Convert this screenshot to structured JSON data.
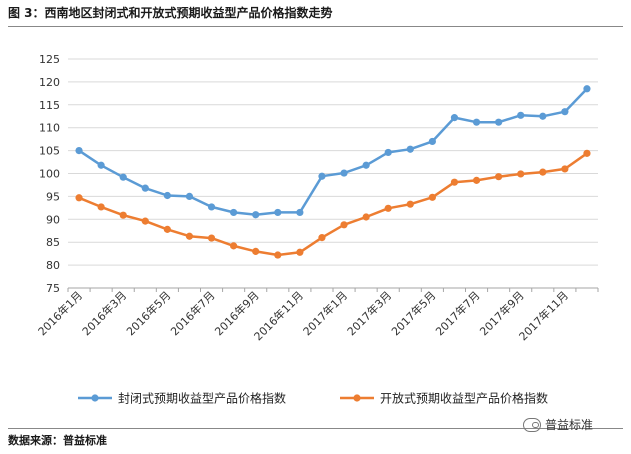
{
  "figure": {
    "title": "图 3：西南地区封闭式和开放式预期收益型产品价格指数走势",
    "source": "数据来源：普益标准",
    "watermark": "普益标准"
  },
  "colors": {
    "closed": "#5b9bd5",
    "open": "#ed7d31",
    "grid": "#d9d9d9",
    "axis": "#a6a6a6"
  },
  "chart_data": {
    "type": "line",
    "title": "",
    "xlabel": "",
    "ylabel": "",
    "ylim": [
      75,
      125
    ],
    "yticks": [
      75,
      80,
      85,
      90,
      95,
      100,
      105,
      110,
      115,
      120,
      125
    ],
    "grid": true,
    "legend_position": "bottom",
    "categories": [
      "2016年1月",
      "2016年2月",
      "2016年3月",
      "2016年4月",
      "2016年5月",
      "2016年6月",
      "2016年7月",
      "2016年8月",
      "2016年9月",
      "2016年10月",
      "2016年11月",
      "2016年12月",
      "2017年1月",
      "2017年2月",
      "2017年3月",
      "2017年4月",
      "2017年5月",
      "2017年6月",
      "2017年7月",
      "2017年8月",
      "2017年9月",
      "2017年10月",
      "2017年11月",
      "2017年12月"
    ],
    "tick_labels": [
      "2016年1月",
      "2016年3月",
      "2016年5月",
      "2016年7月",
      "2016年9月",
      "2016年11月",
      "2017年1月",
      "2017年3月",
      "2017年5月",
      "2017年7月",
      "2017年9月",
      "2017年11月"
    ],
    "series": [
      {
        "name": "封闭式预期收益型产品价格指数",
        "color_key": "closed",
        "values": [
          105.0,
          101.8,
          99.2,
          96.8,
          95.2,
          95.0,
          92.7,
          91.5,
          91.0,
          91.5,
          91.5,
          99.4,
          100.1,
          101.8,
          104.6,
          105.3,
          107.0,
          112.2,
          111.2,
          111.2,
          112.7,
          112.5,
          113.5,
          118.5
        ]
      },
      {
        "name": "开放式预期收益型产品价格指数",
        "color_key": "open",
        "values": [
          94.7,
          92.7,
          90.9,
          89.6,
          87.8,
          86.3,
          85.9,
          84.2,
          83.0,
          82.2,
          82.8,
          86.0,
          88.8,
          90.5,
          92.4,
          93.3,
          94.8,
          98.1,
          98.5,
          99.3,
          99.9,
          100.3,
          101.0,
          104.4
        ]
      }
    ]
  }
}
